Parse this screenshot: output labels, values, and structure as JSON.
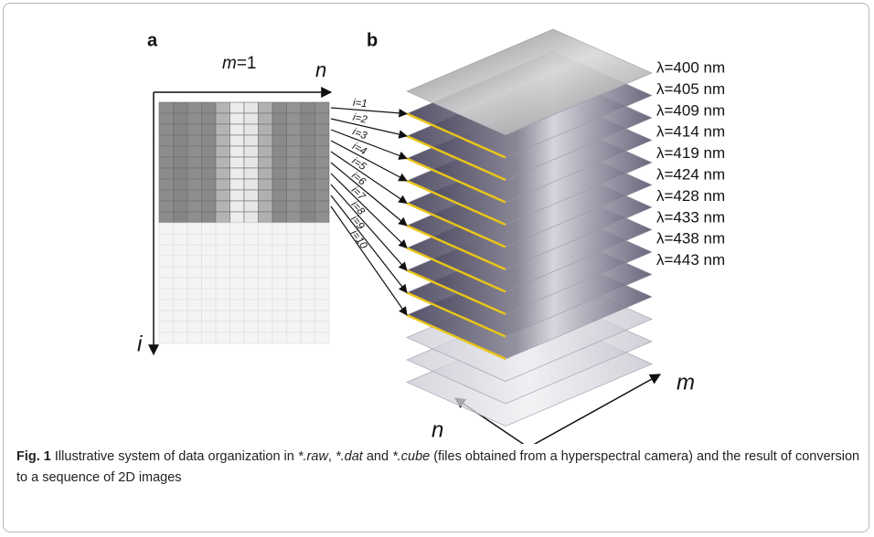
{
  "panel_a": {
    "label": "a",
    "heading_var": "m",
    "heading_rest": "=1",
    "axis_n": "n",
    "axis_i": "i",
    "rows": [
      "i=1",
      "i=2",
      "i=3",
      "i=4",
      "i=5",
      "i=6",
      "i=7",
      "i=8",
      "i=9",
      "i=10"
    ]
  },
  "panel_b": {
    "label": "b",
    "wavelengths": [
      "λ=400 nm",
      "λ=405 nm",
      "λ=409 nm",
      "λ=414 nm",
      "λ=419 nm",
      "λ=424 nm",
      "λ=428 nm",
      "λ=433 nm",
      "λ=438 nm",
      "λ=443 nm"
    ],
    "axis_m": "m",
    "axis_n": "n"
  },
  "caption": {
    "label": "Fig. 1",
    "parts": [
      " Illustrative system of data organization in ",
      "*.raw",
      ", ",
      "*.dat",
      " and ",
      "*.cube",
      " (files obtained from a hyperspectral camera) and the result of conversion to a sequence of 2D images"
    ]
  }
}
